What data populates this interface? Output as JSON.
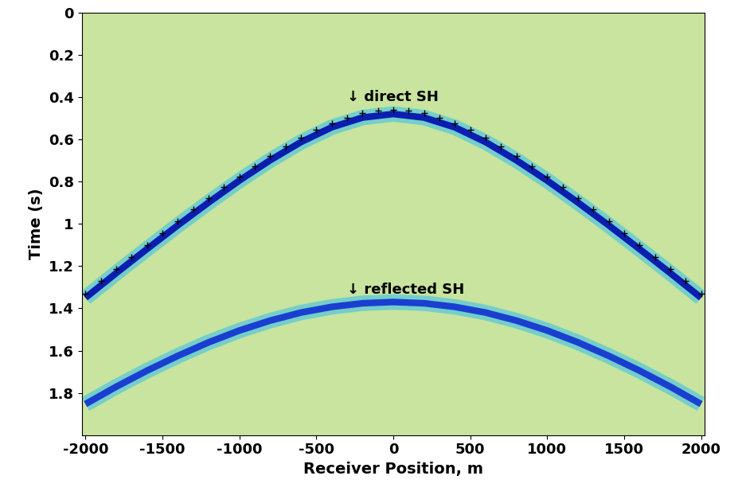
{
  "chart_data": {
    "type": "line",
    "x_label": "Receiver Position, m",
    "y_label": "Time (s)",
    "xlim": [
      -2025,
      2025
    ],
    "xticks": [
      -2000,
      -1500,
      -1000,
      -500,
      0,
      500,
      1000,
      1500,
      2000
    ],
    "ylim": [
      2.0,
      0
    ],
    "yticks": [
      0,
      0.2,
      0.4,
      0.6,
      0.8,
      1,
      1.2,
      1.4,
      1.6,
      1.8
    ],
    "grid": false,
    "annotations": [
      {
        "text": "↓ direct SH",
        "x": -300,
        "y": 0.4
      },
      {
        "text": "↓ reflected SH",
        "x": -300,
        "y": 1.31
      }
    ],
    "series": [
      {
        "type": "line",
        "color": "#0a1fb0",
        "x": [
          -2000,
          -1800,
          -1600,
          -1400,
          -1200,
          -1000,
          -800,
          -600,
          -400,
          -200,
          0,
          200,
          400,
          600,
          800,
          1000,
          1200,
          1400,
          1600,
          1800,
          2000
        ],
        "values": [
          1.35,
          1.233,
          1.119,
          1.007,
          0.899,
          0.795,
          0.699,
          0.613,
          0.543,
          0.497,
          0.48,
          0.497,
          0.543,
          0.613,
          0.699,
          0.795,
          0.899,
          1.007,
          1.119,
          1.233,
          1.35
        ]
      },
      {
        "type": "line",
        "color": "#1a3fd0",
        "x": [
          -2000,
          -1800,
          -1600,
          -1400,
          -1200,
          -1000,
          -800,
          -600,
          -400,
          -200,
          0,
          200,
          400,
          600,
          800,
          1000,
          1200,
          1400,
          1600,
          1800,
          2000
        ],
        "values": [
          1.853,
          1.771,
          1.695,
          1.625,
          1.561,
          1.505,
          1.458,
          1.42,
          1.393,
          1.376,
          1.37,
          1.376,
          1.393,
          1.42,
          1.458,
          1.505,
          1.561,
          1.625,
          1.695,
          1.771,
          1.853
        ]
      },
      {
        "type": "scatter",
        "marker": "+",
        "color": "#000000",
        "x": [
          -2000,
          -1900,
          -1800,
          -1700,
          -1600,
          -1500,
          -1400,
          -1300,
          -1200,
          -1100,
          -1000,
          -900,
          -800,
          -700,
          -600,
          -500,
          -400,
          -300,
          -200,
          -100,
          0,
          100,
          200,
          300,
          400,
          500,
          600,
          700,
          800,
          900,
          1000,
          1100,
          1200,
          1300,
          1400,
          1500,
          1600,
          1700,
          1800,
          1900,
          2000
        ],
        "values": [
          1.33,
          1.271,
          1.213,
          1.156,
          1.099,
          1.043,
          0.987,
          0.932,
          0.879,
          0.826,
          0.775,
          0.726,
          0.679,
          0.634,
          0.593,
          0.556,
          0.523,
          0.497,
          0.477,
          0.464,
          0.46,
          0.464,
          0.477,
          0.497,
          0.523,
          0.556,
          0.593,
          0.634,
          0.679,
          0.726,
          0.775,
          0.826,
          0.879,
          0.932,
          0.987,
          1.043,
          1.099,
          1.156,
          1.213,
          1.271,
          1.33
        ]
      }
    ]
  }
}
